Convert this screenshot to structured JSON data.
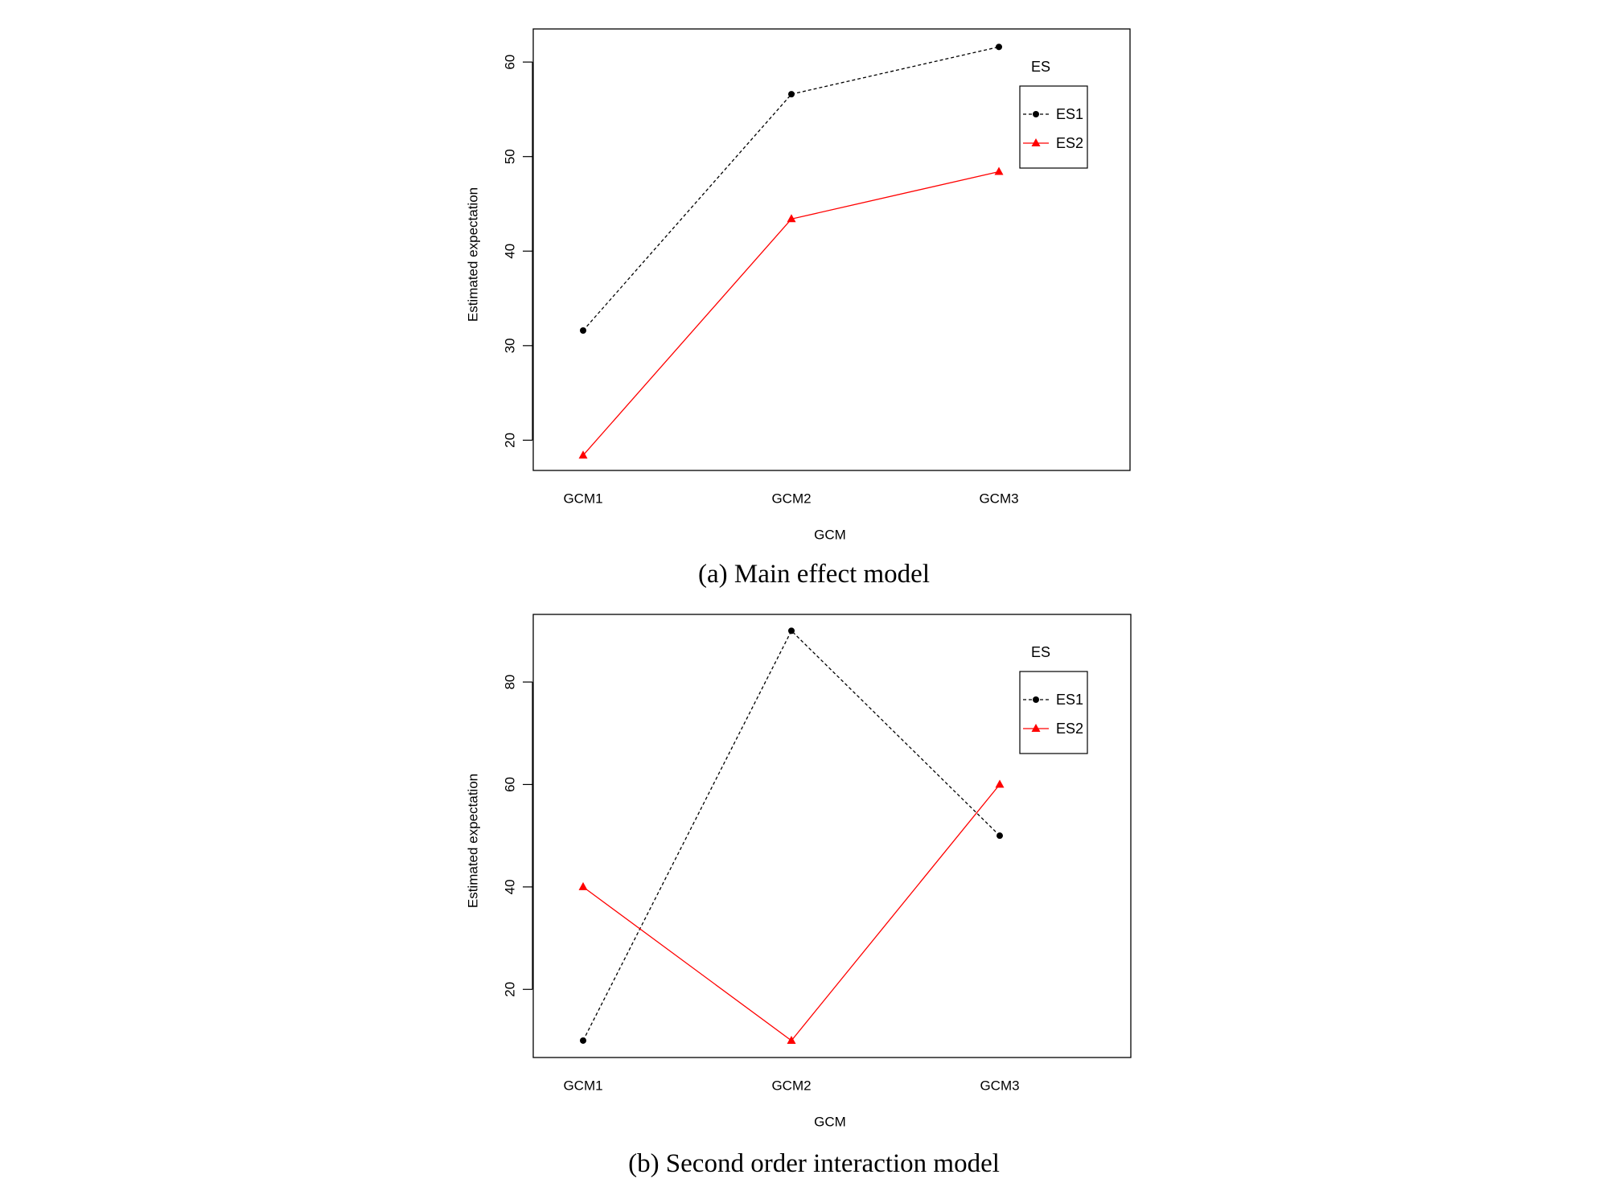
{
  "chart_data": [
    {
      "type": "line",
      "caption": "(a) Main effect model",
      "xlabel": "GCM",
      "ylabel": "Estimated expectation",
      "categories": [
        "GCM1",
        "GCM2",
        "GCM3"
      ],
      "yticks": [
        20,
        30,
        40,
        50,
        60
      ],
      "ylim": [
        16.8,
        63.5
      ],
      "grid": false,
      "legend": {
        "title": "ES",
        "placement": "top-right"
      },
      "series": [
        {
          "name": "ES1",
          "values": [
            31.6,
            56.6,
            61.6
          ],
          "color": "#000000",
          "line": "dashed",
          "marker": "circle"
        },
        {
          "name": "ES2",
          "values": [
            18.4,
            43.4,
            48.4
          ],
          "color": "#ff0000",
          "line": "solid",
          "marker": "triangle"
        }
      ]
    },
    {
      "type": "line",
      "caption": "(b) Second order interaction model",
      "xlabel": "GCM",
      "ylabel": "Estimated expectation",
      "categories": [
        "GCM1",
        "GCM2",
        "GCM3"
      ],
      "yticks": [
        20,
        40,
        60,
        80
      ],
      "ylim": [
        6.7,
        93.2
      ],
      "grid": false,
      "legend": {
        "title": "ES",
        "placement": "top-right"
      },
      "series": [
        {
          "name": "ES1",
          "values": [
            10,
            90,
            50
          ],
          "color": "#000000",
          "line": "dashed",
          "marker": "circle"
        },
        {
          "name": "ES2",
          "values": [
            40,
            10,
            60
          ],
          "color": "#ff0000",
          "line": "solid",
          "marker": "triangle"
        }
      ]
    }
  ]
}
